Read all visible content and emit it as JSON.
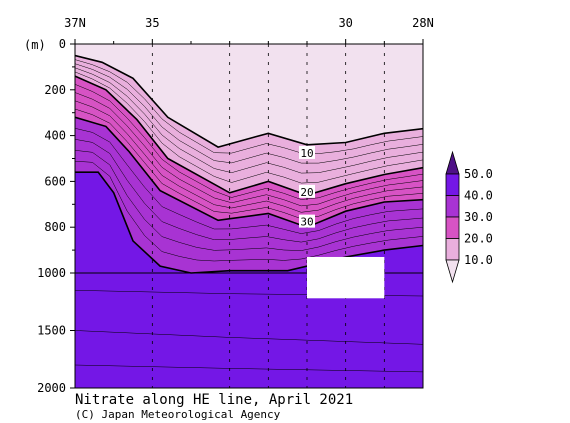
{
  "chart_data": {
    "type": "heatmap",
    "title": "Nitrate along HE line, April 2021",
    "credit": "(C) Japan Meteorological Agency",
    "y_unit_label": "(m)",
    "x_tick_labels": [
      "37N",
      "35",
      "30",
      "28N"
    ],
    "x_ticks_lat": [
      37,
      35,
      30,
      28
    ],
    "xlim": [
      37,
      28
    ],
    "y_tick_labels": [
      "0",
      "200",
      "400",
      "600",
      "800",
      "1000",
      "1500",
      "2000"
    ],
    "y_ticks_depth": [
      0,
      200,
      400,
      600,
      800,
      1000,
      1500,
      2000
    ],
    "ylim": [
      0,
      2000
    ],
    "y_scale": "piecewise linear, 0-1000 m expanded, 1000-2000 m compressed",
    "stations_lat": [
      35.0,
      33.0,
      32.0,
      31.0,
      30.0,
      29.0
    ],
    "colorbar": {
      "levels": [
        10.0,
        20.0,
        30.0,
        40.0,
        50.0
      ],
      "tick_labels": [
        "10.0",
        "20.0",
        "30.0",
        "40.0",
        "50.0"
      ],
      "colors": [
        "#f2e1ef",
        "#e9afdd",
        "#d753c4",
        "#a833d3",
        "#7417e6",
        "#4f1187"
      ]
    },
    "bands": [
      {
        "label": "<10",
        "color": "#f2e1ef"
      },
      {
        "label": "10-20",
        "color": "#e9afdd"
      },
      {
        "label": "20-30",
        "color": "#d753c4"
      },
      {
        "label": "30-40",
        "color": "#a833d3"
      },
      {
        "label": ">40",
        "color": "#7417e6"
      }
    ],
    "contour_labels": [
      {
        "text": "10",
        "lat": 31.0,
        "depth": 480
      },
      {
        "text": "20",
        "lat": 31.0,
        "depth": 650
      },
      {
        "text": "30",
        "lat": 31.0,
        "depth": 780
      }
    ],
    "isolines": [
      {
        "value": 10,
        "heavy": true,
        "points": [
          [
            37.0,
            50
          ],
          [
            36.3,
            80
          ],
          [
            35.5,
            150
          ],
          [
            34.6,
            320
          ],
          [
            33.3,
            450
          ],
          [
            32.0,
            390
          ],
          [
            31.0,
            440
          ],
          [
            30.0,
            430
          ],
          [
            29.0,
            390
          ],
          [
            28.0,
            370
          ]
        ]
      },
      {
        "value": 20,
        "heavy": true,
        "points": [
          [
            37.0,
            140
          ],
          [
            36.2,
            200
          ],
          [
            35.4,
            330
          ],
          [
            34.6,
            500
          ],
          [
            33.0,
            650
          ],
          [
            32.0,
            600
          ],
          [
            31.0,
            660
          ],
          [
            30.0,
            610
          ],
          [
            29.0,
            570
          ],
          [
            28.0,
            540
          ]
        ]
      },
      {
        "value": 30,
        "heavy": true,
        "points": [
          [
            37.0,
            320
          ],
          [
            36.2,
            360
          ],
          [
            35.6,
            470
          ],
          [
            34.8,
            640
          ],
          [
            33.3,
            770
          ],
          [
            32.0,
            740
          ],
          [
            31.0,
            800
          ],
          [
            30.0,
            730
          ],
          [
            29.0,
            690
          ],
          [
            28.0,
            680
          ]
        ]
      },
      {
        "value": 40,
        "heavy": true,
        "points": [
          [
            37.0,
            560
          ],
          [
            36.4,
            560
          ],
          [
            36.0,
            650
          ],
          [
            35.5,
            860
          ],
          [
            34.8,
            970
          ],
          [
            34.0,
            1000
          ],
          [
            33.0,
            990
          ],
          [
            31.5,
            990
          ],
          [
            30.0,
            930
          ],
          [
            29.0,
            900
          ],
          [
            28.0,
            880
          ]
        ]
      }
    ]
  }
}
